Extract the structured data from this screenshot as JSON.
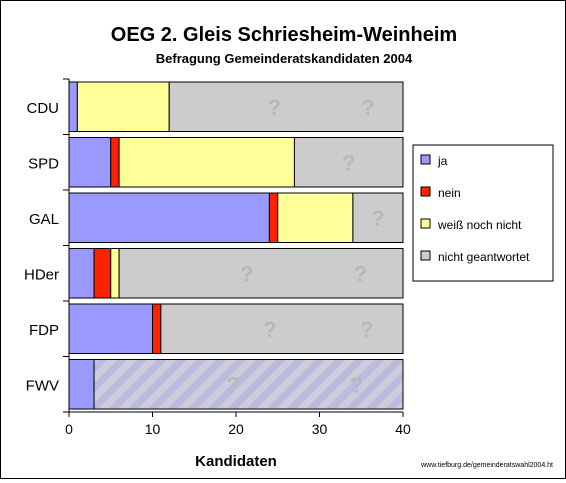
{
  "chart_data": {
    "type": "bar",
    "orientation": "horizontal",
    "stacked": true,
    "title": "OEG 2. Gleis Schriesheim-Weinheim",
    "subtitle": "Befragung Gemeinderatskandidaten 2004",
    "xlabel": "Kandidaten",
    "ylabel": "",
    "xlim": [
      0,
      40
    ],
    "xticks": [
      "0",
      "10",
      "20",
      "30",
      "40"
    ],
    "categories": [
      "CDU",
      "SPD",
      "GAL",
      "HDer",
      "FDP",
      "FWV"
    ],
    "series": [
      {
        "name": "ja",
        "color": "#9999ff",
        "values": [
          1,
          5,
          24,
          3,
          10,
          3
        ]
      },
      {
        "name": "nein",
        "color": "#ff2200",
        "values": [
          0,
          1,
          1,
          2,
          1,
          0
        ]
      },
      {
        "name": "weiß noch nicht",
        "color": "#ffff99",
        "values": [
          11,
          21,
          9,
          1,
          0,
          0
        ]
      },
      {
        "name": "nicht geantwortet",
        "color": "#cccccc",
        "values": [
          28,
          13,
          6,
          34,
          29,
          37
        ]
      }
    ],
    "unanswered_marker": "?",
    "legend_position": "right",
    "grid": false,
    "source_note": "www.tiefburg.de/gemeinderatswahl2004.ht"
  }
}
